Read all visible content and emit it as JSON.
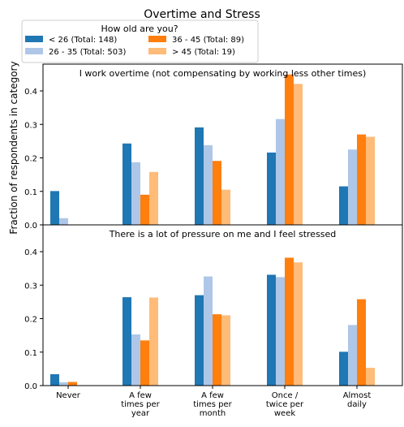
{
  "figure": {
    "title": "Overtime and Stress",
    "ylabel": "Fraction of respondents in category"
  },
  "legend": {
    "title": "How old are you?",
    "entries": [
      {
        "label": "< 26 (Total: 148)",
        "color": "#1f77b4"
      },
      {
        "label": "26 - 35 (Total: 503)",
        "color": "#aec7e8"
      },
      {
        "label": "36 - 45 (Total: 89)",
        "color": "#ff7f0e"
      },
      {
        "label": "> 45 (Total: 19)",
        "color": "#ffbb78"
      }
    ]
  },
  "chart_data": [
    {
      "type": "bar",
      "title": "I work overtime (not compensating by working less other times)",
      "categories": [
        "Never",
        "A few\ntimes per\nyear",
        "A few\ntimes per\nmonth",
        "Once /\ntwice per\nweek",
        "Almost\ndaily"
      ],
      "yticks": [
        "0.0",
        "0.1",
        "0.2",
        "0.3",
        "0.4"
      ],
      "ylim": [
        0,
        0.48
      ],
      "grid": false,
      "series": [
        {
          "name": "< 26 (Total: 148)",
          "color": "#1f77b4",
          "values": [
            0.101,
            0.243,
            0.291,
            0.216,
            0.115
          ]
        },
        {
          "name": "26 - 35 (Total: 503)",
          "color": "#aec7e8",
          "values": [
            0.02,
            0.187,
            0.238,
            0.316,
            0.225
          ]
        },
        {
          "name": "36 - 45 (Total: 89)",
          "color": "#ff7f0e",
          "values": [
            0.0,
            0.09,
            0.191,
            0.449,
            0.27
          ]
        },
        {
          "name": "> 45 (Total: 19)",
          "color": "#ffbb78",
          "values": [
            0.0,
            0.158,
            0.105,
            0.421,
            0.263
          ]
        }
      ]
    },
    {
      "type": "bar",
      "title": "There is a lot of pressure on me and I feel stressed",
      "categories": [
        "Never",
        "A few\ntimes per\nyear",
        "A few\ntimes per\nmonth",
        "Once /\ntwice per\nweek",
        "Almost\ndaily"
      ],
      "yticks": [
        "0.0",
        "0.1",
        "0.2",
        "0.3",
        "0.4"
      ],
      "ylim": [
        0,
        0.48
      ],
      "grid": false,
      "series": [
        {
          "name": "< 26 (Total: 148)",
          "color": "#1f77b4",
          "values": [
            0.034,
            0.264,
            0.27,
            0.331,
            0.101
          ]
        },
        {
          "name": "26 - 35 (Total: 503)",
          "color": "#aec7e8",
          "values": [
            0.01,
            0.153,
            0.326,
            0.324,
            0.181
          ]
        },
        {
          "name": "36 - 45 (Total: 89)",
          "color": "#ff7f0e",
          "values": [
            0.011,
            0.135,
            0.213,
            0.382,
            0.258
          ]
        },
        {
          "name": "> 45 (Total: 19)",
          "color": "#ffbb78",
          "values": [
            0.0,
            0.263,
            0.21,
            0.368,
            0.053
          ]
        }
      ]
    }
  ]
}
